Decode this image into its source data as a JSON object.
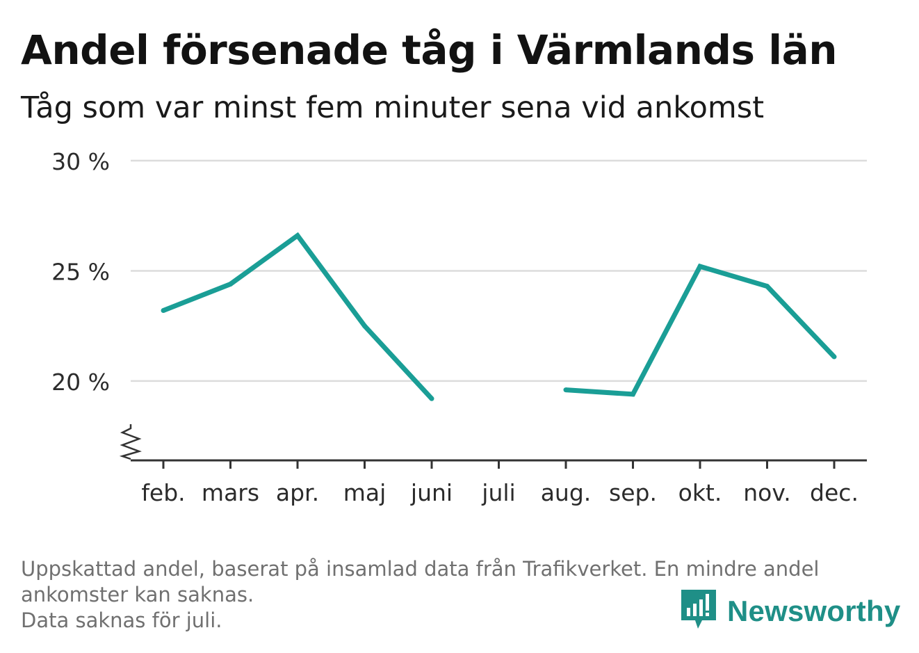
{
  "header": {
    "title": "Andel försenade tåg i Värmlands län",
    "subtitle": "Tåg som var minst fem minuter sena vid ankomst"
  },
  "footnote": {
    "line1": "Uppskattad andel, baserat på insamlad data från Trafikverket. En mindre andel",
    "line2": "ankomster kan saknas.",
    "line3": "Data saknas för juli."
  },
  "brand": {
    "name": "Newsworthy",
    "icon": "newsworthy-logo-icon"
  },
  "colors": {
    "line": "#1a9e96",
    "grid": "#dcdcdc",
    "axis": "#333333",
    "brand": "#1f8f87"
  },
  "chart_data": {
    "type": "line",
    "title": "Andel försenade tåg i Värmlands län",
    "subtitle": "Tåg som var minst fem minuter sena vid ankomst",
    "categories": [
      "feb.",
      "mars",
      "apr.",
      "maj",
      "juni",
      "juli",
      "aug.",
      "sep.",
      "okt.",
      "nov.",
      "dec."
    ],
    "values": [
      23.2,
      24.4,
      26.6,
      22.5,
      19.2,
      null,
      19.6,
      19.4,
      25.2,
      24.3,
      21.1
    ],
    "ylim": [
      16.4,
      30
    ],
    "yticks": [
      20,
      25,
      30
    ],
    "ytick_labels": [
      "20 %",
      "25 %",
      "30 %"
    ],
    "axis_break": true,
    "grid": true,
    "xlabel": "",
    "ylabel": ""
  }
}
